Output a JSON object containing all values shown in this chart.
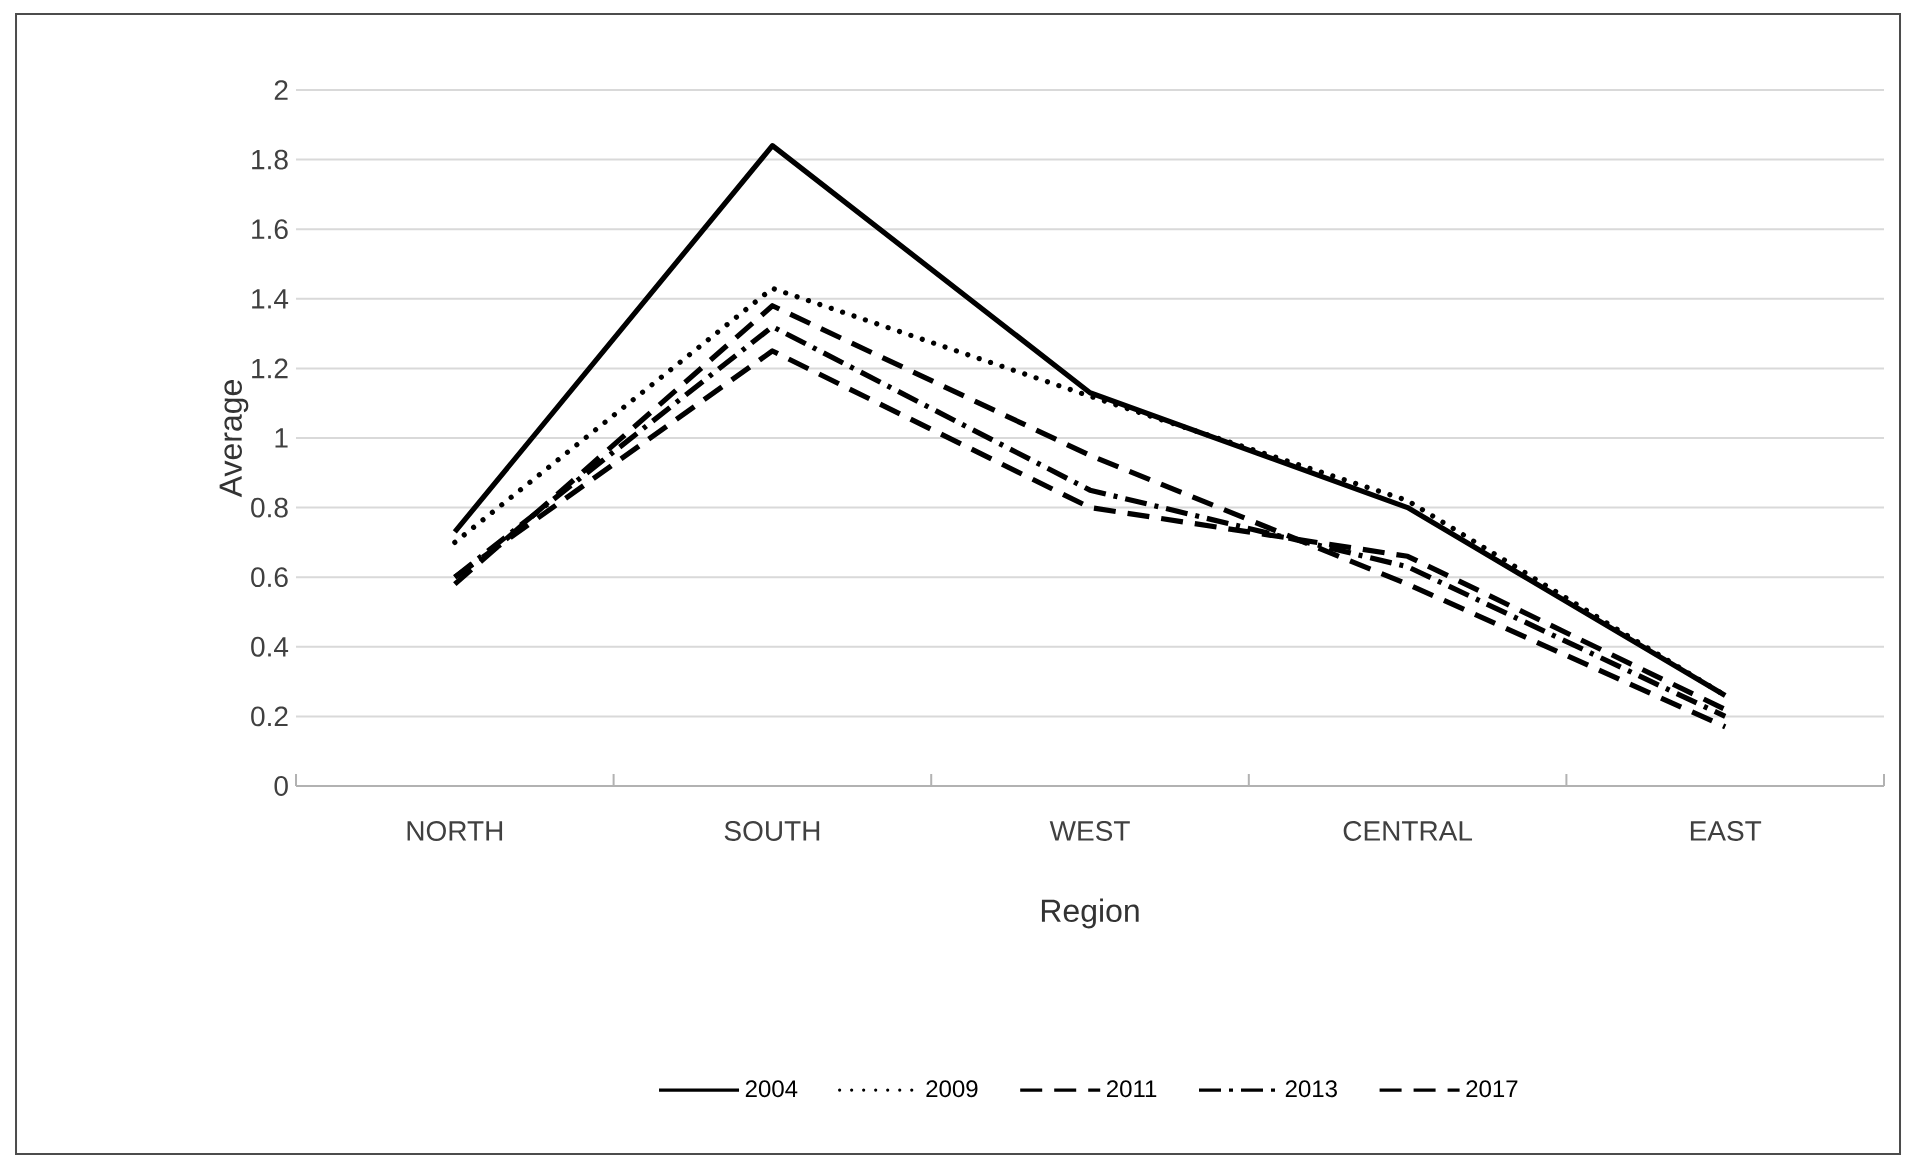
{
  "chart_data": {
    "type": "line",
    "xlabel": "Region",
    "ylabel": "Average",
    "categories": [
      "NORTH",
      "SOUTH",
      "WEST",
      "CENTRAL",
      "EAST"
    ],
    "ylim": [
      0,
      2
    ],
    "yticks": [
      0,
      0.2,
      0.4,
      0.6,
      0.8,
      1,
      1.2,
      1.4,
      1.6,
      1.8,
      2
    ],
    "grid": "y",
    "legend": "bottom",
    "series": [
      {
        "name": "2004",
        "color": "#000000",
        "line_style": "solid",
        "values": [
          0.73,
          1.84,
          1.13,
          0.8,
          0.26
        ]
      },
      {
        "name": "2009",
        "color": "#000000",
        "line_style": "dotted",
        "values": [
          0.7,
          1.43,
          1.12,
          0.82,
          0.26
        ]
      },
      {
        "name": "2011",
        "color": "#000000",
        "line_style": "dashed",
        "values": [
          0.6,
          1.25,
          0.8,
          0.66,
          0.22
        ]
      },
      {
        "name": "2013",
        "color": "#000000",
        "line_style": "dashdot",
        "values": [
          0.6,
          1.32,
          0.85,
          0.63,
          0.2
        ]
      },
      {
        "name": "2017",
        "color": "#000000",
        "line_style": "dashed",
        "values": [
          0.58,
          1.38,
          0.95,
          0.58,
          0.17
        ]
      }
    ]
  }
}
